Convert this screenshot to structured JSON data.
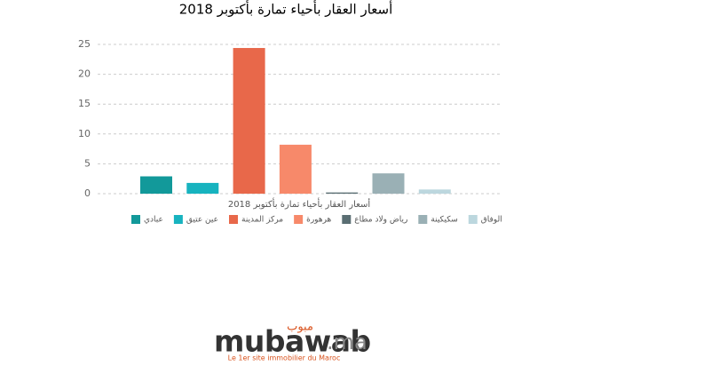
{
  "chart_data": {
    "type": "bar",
    "title": "أسعار العقار بأحياء تمارة بأكتوبر 2018",
    "categories": [
      "أسعار العقار بأحياء تمارة بأكتوبر 2018"
    ],
    "series": [
      {
        "name": "عبادي",
        "color": "#12999a",
        "values": [
          2.9
        ]
      },
      {
        "name": "عين عتيق",
        "color": "#17b3bf",
        "values": [
          1.8
        ]
      },
      {
        "name": "مركز المدينة",
        "color": "#e8684a",
        "values": [
          24.4
        ]
      },
      {
        "name": "هرهورة",
        "color": "#f7896a",
        "values": [
          8.2
        ]
      },
      {
        "name": "رياض ولاد مطاع",
        "color": "#5a6e73",
        "values": [
          0.2
        ]
      },
      {
        "name": "سكيكينة",
        "color": "#9ab0b5",
        "values": [
          3.4
        ]
      },
      {
        "name": "الوفاق",
        "color": "#bcd7de",
        "values": [
          0.7
        ]
      }
    ],
    "ylim": [
      0,
      25
    ],
    "yticks": [
      0,
      5,
      10,
      15,
      20,
      25
    ],
    "grid": true,
    "legend": "bottom"
  },
  "logo": {
    "arabic": "مبوب",
    "name": "mubawab",
    "tld": ".ma",
    "tagline": "Le 1er site immobilier du Maroc"
  }
}
